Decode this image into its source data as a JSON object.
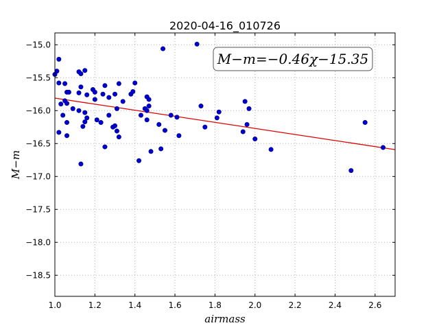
{
  "chart_data": {
    "type": "scatter",
    "title": "2020-04-16_010726",
    "xlabel": "airmass",
    "ylabel": "M−m",
    "xlim": [
      1.0,
      2.7
    ],
    "ylim": [
      -18.82,
      -14.82
    ],
    "xticks": [
      1.0,
      1.2,
      1.4,
      1.6,
      1.8,
      2.0,
      2.2,
      2.4,
      2.6
    ],
    "xtick_labels": [
      "1.0",
      "1.2",
      "1.4",
      "1.6",
      "1.8",
      "2.0",
      "2.2",
      "2.4",
      "2.6"
    ],
    "yticks": [
      -15.0,
      -15.5,
      -16.0,
      -16.5,
      -17.0,
      -17.5,
      -18.0,
      -18.5
    ],
    "ytick_labels": [
      "−15.0",
      "−15.5",
      "−16.0",
      "−16.5",
      "−17.0",
      "−17.5",
      "−18.0",
      "−18.5"
    ],
    "grid": true,
    "annotation": "M−m=−0.46χ−15.35",
    "fit": {
      "slope": -0.46,
      "intercept": -15.35,
      "color": "#dd0000"
    },
    "marker_color": "#0000cc",
    "points": [
      {
        "x": 1.0,
        "y": -15.45
      },
      {
        "x": 1.01,
        "y": -15.4
      },
      {
        "x": 1.02,
        "y": -15.22
      },
      {
        "x": 1.02,
        "y": -15.58
      },
      {
        "x": 1.02,
        "y": -16.33
      },
      {
        "x": 1.03,
        "y": -15.9
      },
      {
        "x": 1.04,
        "y": -16.07
      },
      {
        "x": 1.05,
        "y": -15.59
      },
      {
        "x": 1.05,
        "y": -15.85
      },
      {
        "x": 1.06,
        "y": -15.72
      },
      {
        "x": 1.06,
        "y": -15.89
      },
      {
        "x": 1.06,
        "y": -16.18
      },
      {
        "x": 1.06,
        "y": -16.38
      },
      {
        "x": 1.07,
        "y": -15.72
      },
      {
        "x": 1.09,
        "y": -15.97
      },
      {
        "x": 1.12,
        "y": -15.41
      },
      {
        "x": 1.12,
        "y": -16.0
      },
      {
        "x": 1.12,
        "y": -15.73
      },
      {
        "x": 1.13,
        "y": -15.44
      },
      {
        "x": 1.13,
        "y": -15.64
      },
      {
        "x": 1.13,
        "y": -16.81
      },
      {
        "x": 1.14,
        "y": -16.24
      },
      {
        "x": 1.15,
        "y": -15.39
      },
      {
        "x": 1.15,
        "y": -16.17
      },
      {
        "x": 1.15,
        "y": -16.03
      },
      {
        "x": 1.16,
        "y": -15.76
      },
      {
        "x": 1.16,
        "y": -16.11
      },
      {
        "x": 1.19,
        "y": -15.68
      },
      {
        "x": 1.2,
        "y": -15.72
      },
      {
        "x": 1.2,
        "y": -15.83
      },
      {
        "x": 1.21,
        "y": -16.14
      },
      {
        "x": 1.23,
        "y": -16.18
      },
      {
        "x": 1.24,
        "y": -15.75
      },
      {
        "x": 1.25,
        "y": -16.55
      },
      {
        "x": 1.25,
        "y": -15.62
      },
      {
        "x": 1.27,
        "y": -15.8
      },
      {
        "x": 1.27,
        "y": -16.07
      },
      {
        "x": 1.29,
        "y": -16.25
      },
      {
        "x": 1.3,
        "y": -15.75
      },
      {
        "x": 1.3,
        "y": -16.23
      },
      {
        "x": 1.31,
        "y": -15.97
      },
      {
        "x": 1.31,
        "y": -16.31
      },
      {
        "x": 1.32,
        "y": -15.59
      },
      {
        "x": 1.32,
        "y": -16.4
      },
      {
        "x": 1.34,
        "y": -15.86
      },
      {
        "x": 1.38,
        "y": -15.75
      },
      {
        "x": 1.39,
        "y": -15.71
      },
      {
        "x": 1.4,
        "y": -15.58
      },
      {
        "x": 1.42,
        "y": -16.76
      },
      {
        "x": 1.43,
        "y": -16.07
      },
      {
        "x": 1.45,
        "y": -15.97
      },
      {
        "x": 1.46,
        "y": -15.79
      },
      {
        "x": 1.46,
        "y": -16.14
      },
      {
        "x": 1.46,
        "y": -16.0
      },
      {
        "x": 1.47,
        "y": -15.93
      },
      {
        "x": 1.47,
        "y": -15.83
      },
      {
        "x": 1.48,
        "y": -16.62
      },
      {
        "x": 1.52,
        "y": -16.21
      },
      {
        "x": 1.53,
        "y": -16.58
      },
      {
        "x": 1.54,
        "y": -15.06
      },
      {
        "x": 1.55,
        "y": -16.3
      },
      {
        "x": 1.58,
        "y": -16.07
      },
      {
        "x": 1.61,
        "y": -16.1
      },
      {
        "x": 1.62,
        "y": -16.38
      },
      {
        "x": 1.71,
        "y": -14.99
      },
      {
        "x": 1.73,
        "y": -15.93
      },
      {
        "x": 1.75,
        "y": -16.25
      },
      {
        "x": 1.81,
        "y": -16.11
      },
      {
        "x": 1.82,
        "y": -16.02
      },
      {
        "x": 1.94,
        "y": -16.32
      },
      {
        "x": 1.95,
        "y": -15.86
      },
      {
        "x": 1.96,
        "y": -16.21
      },
      {
        "x": 1.97,
        "y": -15.97
      },
      {
        "x": 2.0,
        "y": -16.43
      },
      {
        "x": 2.08,
        "y": -16.59
      },
      {
        "x": 2.48,
        "y": -16.91
      },
      {
        "x": 2.55,
        "y": -16.18
      },
      {
        "x": 2.64,
        "y": -16.56
      }
    ]
  }
}
